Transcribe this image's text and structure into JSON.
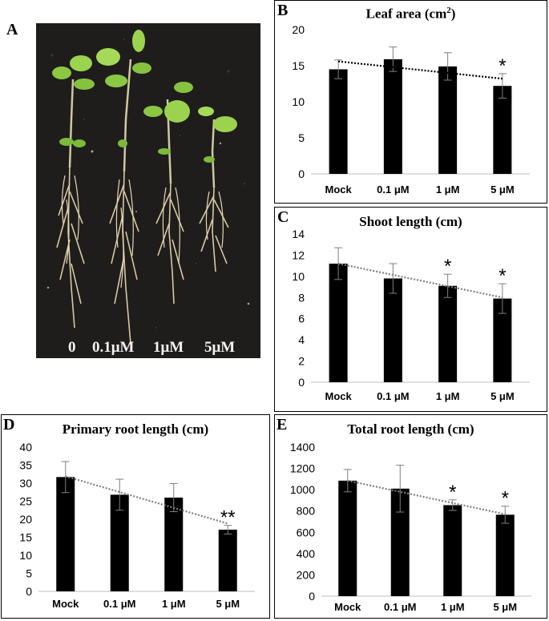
{
  "panels": {
    "A": {
      "letter": "A",
      "photo_labels": [
        "0",
        "0.1μM",
        "1μM",
        "5μM"
      ]
    },
    "B": {
      "letter": "B"
    },
    "C": {
      "letter": "C"
    },
    "D": {
      "letter": "D"
    },
    "E": {
      "letter": "E"
    }
  },
  "colors": {
    "bar": "#000000",
    "trendline_B": "#000000",
    "trendline_other": "#7f7f7f",
    "photo_background": "#1e1d1c",
    "leaf": "#8bd14a",
    "root": "#d9c9a3"
  },
  "chart_data": [
    {
      "id": "B",
      "type": "bar",
      "title": "Leaf area (cm",
      "title_sup": "2",
      "title_end": ")",
      "categories": [
        "Mock",
        "0.1 μM",
        "1 μM",
        "5 μM"
      ],
      "values": [
        14.5,
        15.9,
        14.9,
        12.2
      ],
      "errors": [
        1.3,
        1.7,
        1.9,
        1.7
      ],
      "significance": [
        "",
        "",
        "",
        "*"
      ],
      "ylim": [
        0,
        20
      ],
      "yticks": [
        "0",
        "5",
        "10",
        "15",
        "20"
      ],
      "trendline": {
        "style": "dotted",
        "color": "black",
        "start": 15.6,
        "end": 13.2
      },
      "grid": false
    },
    {
      "id": "C",
      "type": "bar",
      "title": "Shoot length (cm)",
      "categories": [
        "Mock",
        "0.1 μM",
        "1 μM",
        "5 μM"
      ],
      "values": [
        11.2,
        9.8,
        9.1,
        7.9
      ],
      "errors": [
        1.5,
        1.4,
        1.1,
        1.4
      ],
      "significance": [
        "",
        "",
        "*",
        "*"
      ],
      "ylim": [
        0,
        14
      ],
      "yticks": [
        "0",
        "2",
        "4",
        "6",
        "8",
        "10",
        "12",
        "14"
      ],
      "trendline": {
        "style": "dotted",
        "color": "gray",
        "start": 11.2,
        "end": 8.0
      },
      "grid": false
    },
    {
      "id": "D",
      "type": "bar",
      "title": "Primary root length (cm)",
      "categories": [
        "Mock",
        "0.1 μM",
        "1 μM",
        "5 μM"
      ],
      "values": [
        31.7,
        26.8,
        26.0,
        17.1
      ],
      "errors": [
        4.3,
        4.3,
        3.9,
        1.2
      ],
      "significance": [
        "",
        "",
        "",
        "**"
      ],
      "ylim": [
        0,
        40
      ],
      "yticks": [
        "0",
        "5",
        "10",
        "15",
        "20",
        "25",
        "30",
        "35",
        "40"
      ],
      "trendline": {
        "style": "dotted",
        "color": "gray",
        "start": 31.9,
        "end": 18.8
      },
      "grid": false
    },
    {
      "id": "E",
      "type": "bar",
      "title": "Total root length (cm)",
      "categories": [
        "Mock",
        "0.1 μM",
        "1 μM",
        "5 μM"
      ],
      "values": [
        1085,
        1010,
        855,
        765
      ],
      "errors": [
        105,
        220,
        50,
        80
      ],
      "significance": [
        "",
        "",
        "*",
        "*"
      ],
      "ylim": [
        0,
        1400
      ],
      "yticks": [
        "0",
        "200",
        "400",
        "600",
        "800",
        "1000",
        "1200",
        "1400"
      ],
      "trendline": {
        "style": "dotted",
        "color": "gray",
        "start": 1085,
        "end": 770
      },
      "grid": false
    }
  ]
}
